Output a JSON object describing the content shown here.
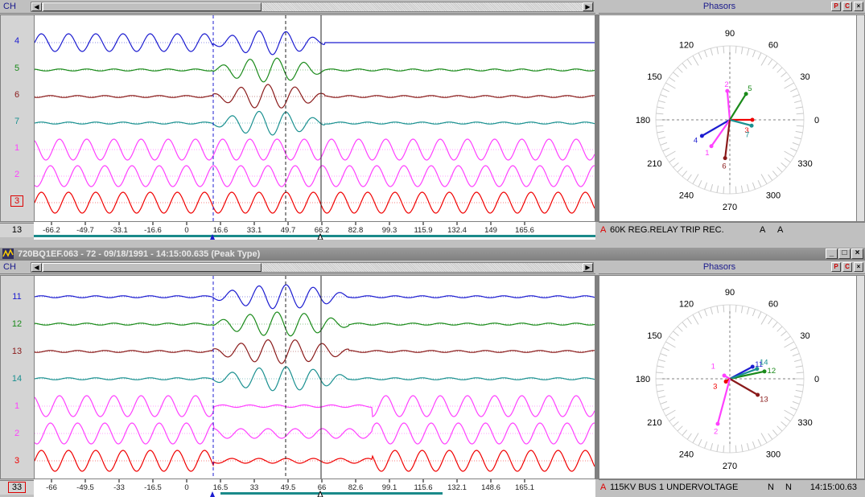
{
  "colors": {
    "ch_blue": "#1c1cd0",
    "ch_green": "#1a8a1a",
    "ch_maroon": "#8a1a1a",
    "ch_teal": "#1a9090",
    "ch_magenta": "#ff40ff",
    "ch_red": "#f00000",
    "timebar": "#1a8a8a"
  },
  "top": {
    "ch_label": "CH",
    "channels": [
      "4",
      "5",
      "6",
      "7",
      "1",
      "2",
      "3"
    ],
    "channel_count": "13",
    "ticks": [
      "-66.2",
      "-49.7",
      "-33.1",
      "-16.6",
      "0",
      "16.6",
      "33.1",
      "49.7",
      "66.2",
      "82.8",
      "99.3",
      "115.9",
      "132.4",
      "149",
      "165.6"
    ],
    "phasors": {
      "title": "Phasors",
      "btn_p": "P",
      "btn_c": "C",
      "angle_labels": [
        "90",
        "60",
        "30",
        "0",
        "330",
        "300",
        "270",
        "240",
        "210",
        "180",
        "150",
        "120"
      ],
      "vector_labels": [
        "2",
        "5",
        "3",
        "7",
        "4",
        "1",
        "6"
      ]
    },
    "status": {
      "marker": "A",
      "text": "60K REG.RELAY TRIP REC.",
      "flag1": "A",
      "flag2": "A"
    }
  },
  "bottom": {
    "window_title": "720BQ1EF.063 - 72 - 09/18/1991 - 14:15:00.635 (Peak Type)",
    "ch_label": "CH",
    "channels": [
      "11",
      "12",
      "13",
      "14",
      "1",
      "2",
      "3"
    ],
    "channel_count": "33",
    "ticks": [
      "-66",
      "-49.5",
      "-33",
      "-16.5",
      "0",
      "16.5",
      "33",
      "49.5",
      "66",
      "82.6",
      "99.1",
      "115.6",
      "132.1",
      "148.6",
      "165.1"
    ],
    "phasors": {
      "title": "Phasors",
      "btn_p": "P",
      "btn_c": "C",
      "angle_labels": [
        "90",
        "60",
        "30",
        "0",
        "330",
        "300",
        "270",
        "240",
        "210",
        "180",
        "150",
        "120"
      ],
      "vector_labels": [
        "11",
        "12",
        "14",
        "1",
        "3",
        "13",
        "2"
      ]
    },
    "status": {
      "marker": "A",
      "text": "115KV BUS 1 UNDERVOLTAGE",
      "flag1": "N",
      "flag2": "N",
      "time": "14:15:00.63"
    }
  },
  "window_buttons": {
    "minimize": "_",
    "maximize": "□",
    "close": "×"
  }
}
